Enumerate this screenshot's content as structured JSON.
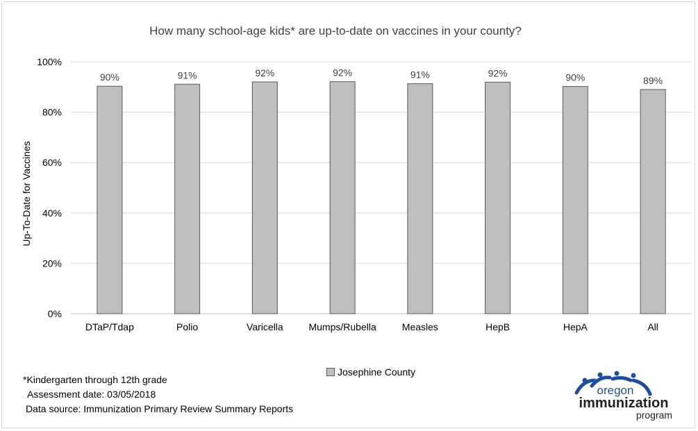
{
  "chart_data": {
    "type": "bar",
    "title": "How many school-age kids* are up-to-date on vaccines in your county?",
    "xlabel": "",
    "ylabel": "Up-To-Date for Vaccines",
    "categories": [
      "DTaP/Tdap",
      "Polio",
      "Varicella",
      "Mumps/Rubella",
      "Measles",
      "HepB",
      "HepA",
      "All"
    ],
    "series": [
      {
        "name": "Josephine County",
        "values": [
          90.3,
          91.1,
          92.0,
          92.1,
          91.3,
          91.9,
          90.2,
          89.0
        ],
        "labels": [
          "90%",
          "91%",
          "92%",
          "92%",
          "91%",
          "92%",
          "90%",
          "89%"
        ],
        "color": "#bfbfbf",
        "border_color": "#595959"
      }
    ],
    "ylim": [
      0,
      100
    ],
    "yticks": [
      0,
      20,
      40,
      60,
      80,
      100
    ],
    "ytick_labels": [
      "0%",
      "20%",
      "40%",
      "60%",
      "80%",
      "100%"
    ],
    "grid": true,
    "legend_position": "bottom"
  },
  "notes": {
    "footnote": "*Kindergarten through 12th grade",
    "assessment": "Assessment date: 03/05/2018",
    "source": "Data source: Immunization Primary Review Summary Reports"
  },
  "logo": {
    "line1": "oregon",
    "line2": "immunization",
    "line3": "program",
    "color_blue": "#1f4e9c",
    "color_dark": "#222222"
  }
}
